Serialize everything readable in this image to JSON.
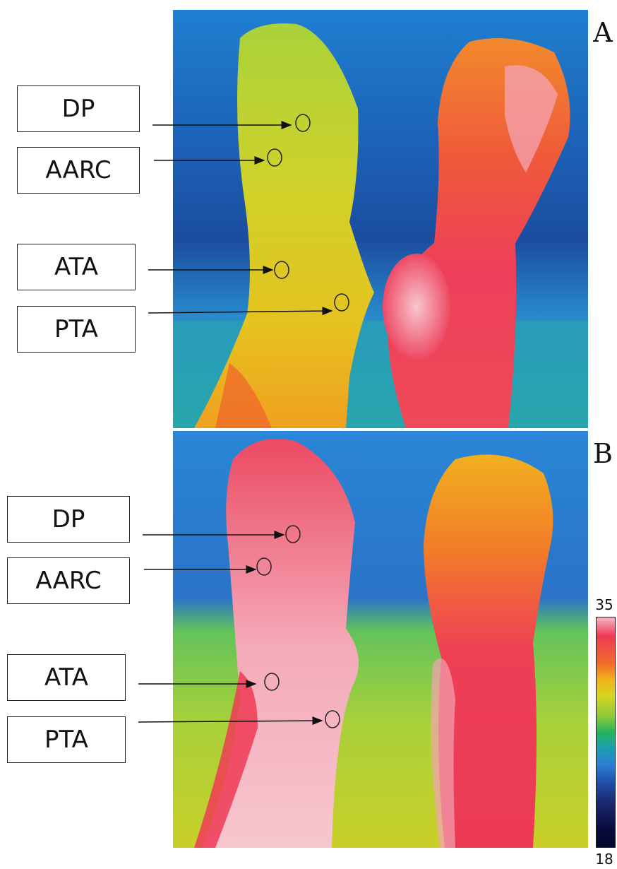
{
  "panels": {
    "a": {
      "letter": "A"
    },
    "b": {
      "letter": "B"
    }
  },
  "labels": {
    "a": [
      "DP",
      "AARC",
      "ATA",
      "PTA"
    ],
    "b": [
      "DP",
      "AARC",
      "ATA",
      "PTA"
    ]
  },
  "colorbar": {
    "max": "35",
    "min": "18",
    "colors": [
      "#f6b6c4",
      "#ee3b56",
      "#f06a2a",
      "#f2b21c",
      "#d7d51f",
      "#8fc93a",
      "#25b25c",
      "#1aa3a8",
      "#2b7fd6",
      "#1f4fa5",
      "#1b2b74",
      "#04062a"
    ]
  }
}
